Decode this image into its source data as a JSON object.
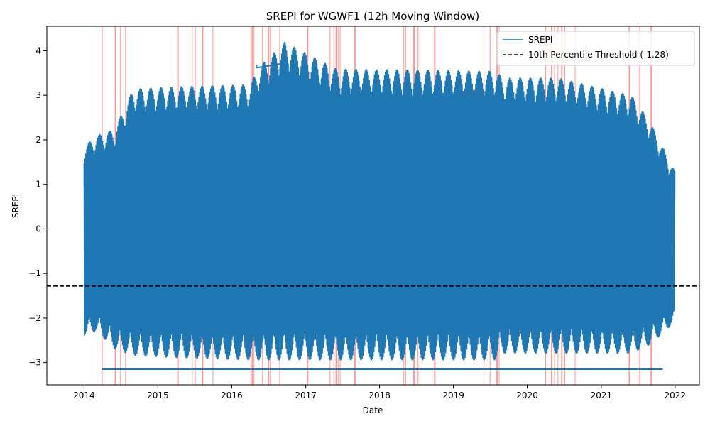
{
  "chart_data": {
    "type": "line",
    "title": "SREPI for WGWF1 (12h Moving Window)",
    "xlabel": "Date",
    "ylabel": "SREPI",
    "xlim": [
      "2013-07-01",
      "2022-05-01"
    ],
    "ylim": [
      -3.5,
      4.55
    ],
    "x_ticks": [
      "2014",
      "2015",
      "2016",
      "2017",
      "2018",
      "2019",
      "2020",
      "2021",
      "2022"
    ],
    "y_ticks": [
      "−3",
      "−2",
      "−1",
      "0",
      "1",
      "2",
      "3",
      "4"
    ],
    "y_tick_values": [
      -3,
      -2,
      -1,
      0,
      1,
      2,
      3,
      4
    ],
    "grid": false,
    "legend_position": "top-right",
    "series": [
      {
        "name": "SREPI",
        "color": "#1f77b4",
        "style": "solid",
        "x_range": [
          "2014-01-01",
          "2021-12-31"
        ],
        "envelope": [
          {
            "x": "2014-01-01",
            "min": -2.4,
            "max": 1.85
          },
          {
            "x": "2014-03-01",
            "min": -2.3,
            "max": 2.1
          },
          {
            "x": "2014-06-01",
            "min": -2.7,
            "max": 2.25
          },
          {
            "x": "2014-09-01",
            "min": -2.85,
            "max": 3.15
          },
          {
            "x": "2015-04-01",
            "min": -2.9,
            "max": 3.2
          },
          {
            "x": "2016-04-01",
            "min": -2.95,
            "max": 3.25
          },
          {
            "x": "2016-05-15",
            "min": -2.95,
            "max": 3.65
          },
          {
            "x": "2016-09-20",
            "min": -2.95,
            "max": 4.2
          },
          {
            "x": "2017-06-01",
            "min": -2.95,
            "max": 3.6
          },
          {
            "x": "2019-08-01",
            "min": -2.95,
            "max": 3.55
          },
          {
            "x": "2019-09-01",
            "min": -2.8,
            "max": 3.4
          },
          {
            "x": "2020-06-01",
            "min": -2.8,
            "max": 3.4
          },
          {
            "x": "2021-06-01",
            "min": -2.8,
            "max": 3.0
          },
          {
            "x": "2021-09-01",
            "min": -2.6,
            "max": 2.4
          },
          {
            "x": "2021-12-31",
            "min": -2.1,
            "max": 1.3
          }
        ],
        "minimum_line": {
          "value": -3.15,
          "x_from": "2014-04-01",
          "x_to": "2021-11-01"
        },
        "peak": {
          "x": "2016-09-20",
          "value": 4.2
        }
      },
      {
        "name": "10th Percentile Threshold (-1.28)",
        "color": "#000000",
        "style": "dashed",
        "value": -1.28
      }
    ],
    "drought_event_marks": [
      "2014-04-01",
      "2014-06-05",
      "2014-06-30",
      "2014-07-25",
      "2015-04-10",
      "2015-06-20",
      "2015-07-05",
      "2015-08-10",
      "2015-09-30",
      "2016-04-05",
      "2016-04-12",
      "2016-04-20",
      "2016-06-01",
      "2016-07-01",
      "2016-07-10",
      "2016-08-25",
      "2017-01-10",
      "2017-05-01",
      "2017-05-20",
      "2017-06-01",
      "2017-06-10",
      "2017-06-20",
      "2017-09-01",
      "2018-05-01",
      "2018-05-10",
      "2018-06-20",
      "2018-07-10",
      "2018-07-20",
      "2018-10-01",
      "2019-06-01",
      "2019-07-01",
      "2019-08-05",
      "2019-08-15",
      "2020-04-01",
      "2020-05-01",
      "2020-05-15",
      "2020-06-01",
      "2020-06-20",
      "2020-07-05",
      "2020-08-25",
      "2021-05-20",
      "2021-07-01",
      "2021-07-10",
      "2021-09-05"
    ],
    "drought_mark_color": "#ff0000"
  }
}
